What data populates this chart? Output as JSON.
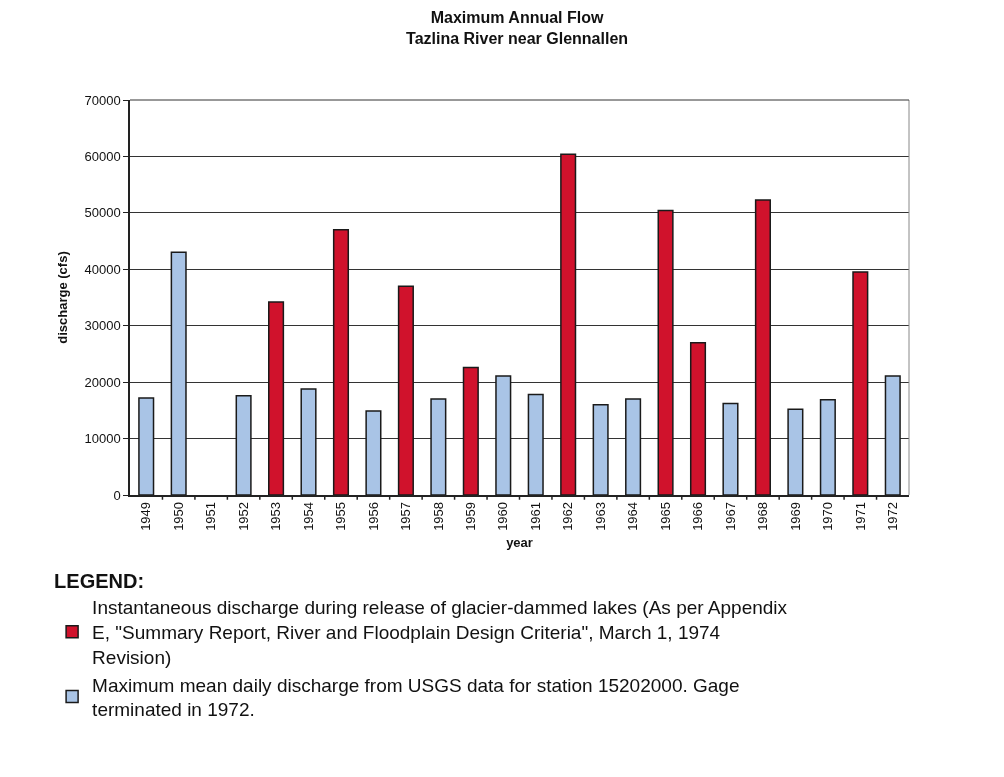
{
  "chart_data": {
    "type": "bar",
    "title": "Maximum Annual Flow",
    "subtitle": "Tazlina River near Glennallen",
    "xlabel": "year",
    "ylabel": "discharge (cfs)",
    "legend_title": "LEGEND:",
    "categories": [
      "1949",
      "1950",
      "1951",
      "1952",
      "1953",
      "1954",
      "1955",
      "1956",
      "1957",
      "1958",
      "1959",
      "1960",
      "1961",
      "1962",
      "1963",
      "1964",
      "1965",
      "1966",
      "1967",
      "1968",
      "1969",
      "1970",
      "1971",
      "1972"
    ],
    "series": [
      {
        "name": "Instantaneous discharge during release of glacier-dammed lakes (As per Appendix E, \"Summary Report, River and Floodplain Design Criteria\", March 1, 1974 Revision)",
        "color": "#d0122c",
        "values": [
          null,
          null,
          null,
          null,
          34200,
          null,
          47000,
          null,
          37000,
          null,
          22600,
          null,
          null,
          60400,
          null,
          null,
          50400,
          27000,
          null,
          52300,
          null,
          null,
          39500,
          null
        ]
      },
      {
        "name": "Maximum mean daily discharge from USGS data for station 15202000. Gage terminated in 1972.",
        "color": "#a9c4e6",
        "values": [
          17200,
          43000,
          null,
          17600,
          null,
          18800,
          null,
          14900,
          null,
          17000,
          null,
          21100,
          17800,
          null,
          16000,
          17000,
          null,
          null,
          16200,
          null,
          15200,
          16900,
          null,
          21100
        ]
      }
    ],
    "ylim": [
      0,
      70000
    ],
    "yticks": [
      0,
      10000,
      20000,
      30000,
      40000,
      50000,
      60000,
      70000
    ],
    "grid": "y",
    "legend": "bottom"
  }
}
